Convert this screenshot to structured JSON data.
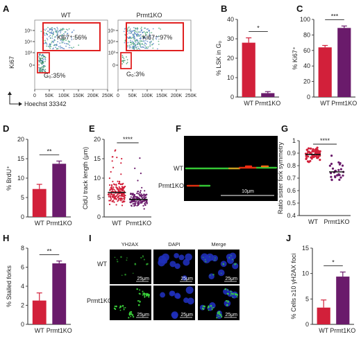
{
  "colors": {
    "wt": "#d2203a",
    "ko": "#6a1b6b",
    "gate": "#e02020",
    "flow": "#4a7bbd",
    "green": "#3bd43b",
    "blue": "#2030c8"
  },
  "panels": {
    "A": {
      "letter": "A",
      "wt_title": "WT",
      "ko_title": "Prmt1KO",
      "ylabel": "Ki67",
      "xlabel": "Hoechst 33342",
      "yticks": [
        "10⁵",
        "10⁴",
        "10³",
        "0"
      ],
      "xticks": [
        "0",
        "50K",
        "100K",
        "150K",
        "200K",
        "250K"
      ],
      "wt_ki67": "Ki67⁺:56%",
      "wt_g0": "G₀:35%",
      "ko_ki67": "Ki67⁺:97%",
      "ko_g0": "G₀:3%"
    },
    "F": {
      "letter": "F",
      "wt": "WT",
      "ko": "Prmt1KO",
      "scale": "10μm"
    },
    "I": {
      "letter": "I",
      "col1": "YH2AX",
      "col2": "DAPI",
      "col3": "Merge",
      "row1": "WT",
      "row2": "Prmt1KO",
      "scale": "25μm"
    }
  },
  "chart_data": [
    {
      "panel": "B",
      "type": "bar",
      "categories": [
        "WT",
        "Prmt1KO"
      ],
      "values": [
        28,
        2
      ],
      "errors": [
        2.5,
        0.8
      ],
      "ylabel": "% LSK in G₀",
      "ylim": [
        0,
        40
      ],
      "yticks": [
        0,
        10,
        20,
        30,
        40
      ],
      "significance": "*"
    },
    {
      "panel": "C",
      "type": "bar",
      "categories": [
        "WT",
        "Prmt1KO"
      ],
      "values": [
        64,
        89
      ],
      "errors": [
        2.5,
        2.5
      ],
      "ylabel": "% Ki67⁺",
      "ylim": [
        0,
        100
      ],
      "yticks": [
        0,
        20,
        40,
        60,
        80,
        100
      ],
      "significance": "***"
    },
    {
      "panel": "D",
      "type": "bar",
      "categories": [
        "WT",
        "Prmt1KO"
      ],
      "values": [
        7.2,
        13.7
      ],
      "errors": [
        1.2,
        0.7
      ],
      "ylabel": "% BrdU⁺",
      "ylim": [
        0,
        20
      ],
      "yticks": [
        0,
        5,
        10,
        15,
        20
      ],
      "significance": "**"
    },
    {
      "panel": "E",
      "type": "scatter",
      "categories": [
        "WT",
        "Prmt1KO"
      ],
      "means": [
        6.3,
        4.5
      ],
      "ylabel": "CldU track length (μm)",
      "ylim": [
        0,
        20
      ],
      "yticks": [
        0,
        5,
        10,
        15,
        20
      ],
      "significance": "****"
    },
    {
      "panel": "G",
      "type": "scatter",
      "categories": [
        "WT",
        "Prmt1KO"
      ],
      "means": [
        0.89,
        0.75
      ],
      "ylabel": "Ratio sister fork symmetry",
      "ylim": [
        0.4,
        1.0
      ],
      "yticks": [
        0.4,
        0.5,
        0.6,
        0.7,
        0.8,
        0.9,
        1.0
      ],
      "significance": "****"
    },
    {
      "panel": "H",
      "type": "bar",
      "categories": [
        "WT",
        "Prmt1KO"
      ],
      "values": [
        2.5,
        6.4
      ],
      "errors": [
        0.8,
        0.25
      ],
      "ylabel": "% Stalled forks",
      "ylim": [
        0,
        8
      ],
      "yticks": [
        0,
        2,
        4,
        6,
        8
      ],
      "significance": "**"
    },
    {
      "panel": "J",
      "type": "bar",
      "categories": [
        "WT",
        "Prmt1KO"
      ],
      "values": [
        3.3,
        9.4
      ],
      "errors": [
        1.5,
        0.9
      ],
      "ylabel": "% Cells ≥10 γH2AX foci",
      "ylim": [
        0,
        15
      ],
      "yticks": [
        0,
        5,
        10,
        15
      ],
      "significance": "*"
    }
  ]
}
